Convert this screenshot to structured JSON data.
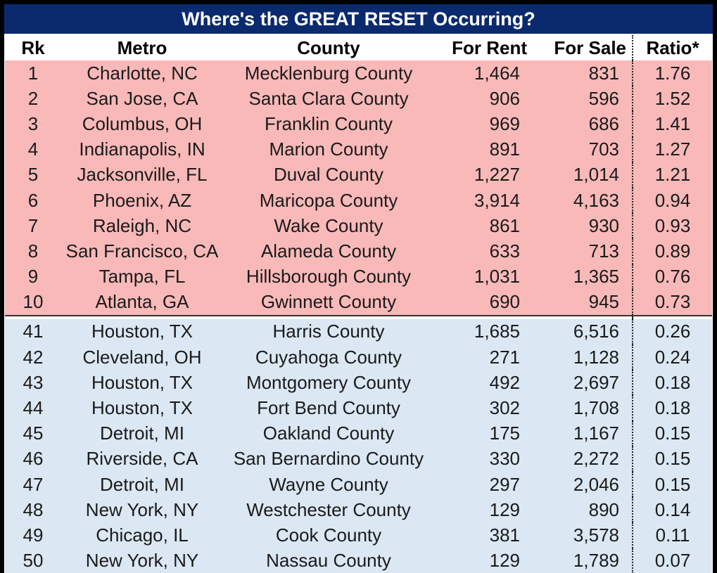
{
  "title": "Where's the GREAT RESET Occurring?",
  "colors": {
    "header_bg": "#0b2a6e",
    "top_bg": "#f9b9b9",
    "bottom_bg": "#dbe8f4"
  },
  "columns": [
    "Rk",
    "Metro",
    "County",
    "For Rent",
    "For Sale",
    "Ratio*"
  ],
  "top_rows": [
    {
      "rank": "1",
      "metro": "Charlotte, NC",
      "county": "Mecklenburg County",
      "rent": "1,464",
      "sale": "831",
      "ratio": "1.76"
    },
    {
      "rank": "2",
      "metro": "San Jose, CA",
      "county": "Santa Clara County",
      "rent": "906",
      "sale": "596",
      "ratio": "1.52"
    },
    {
      "rank": "3",
      "metro": "Columbus, OH",
      "county": "Franklin County",
      "rent": "969",
      "sale": "686",
      "ratio": "1.41"
    },
    {
      "rank": "4",
      "metro": "Indianapolis, IN",
      "county": "Marion County",
      "rent": "891",
      "sale": "703",
      "ratio": "1.27"
    },
    {
      "rank": "5",
      "metro": "Jacksonville, FL",
      "county": "Duval County",
      "rent": "1,227",
      "sale": "1,014",
      "ratio": "1.21"
    },
    {
      "rank": "6",
      "metro": "Phoenix, AZ",
      "county": "Maricopa County",
      "rent": "3,914",
      "sale": "4,163",
      "ratio": "0.94"
    },
    {
      "rank": "7",
      "metro": "Raleigh, NC",
      "county": "Wake County",
      "rent": "861",
      "sale": "930",
      "ratio": "0.93"
    },
    {
      "rank": "8",
      "metro": "San Francisco, CA",
      "county": "Alameda County",
      "rent": "633",
      "sale": "713",
      "ratio": "0.89"
    },
    {
      "rank": "9",
      "metro": "Tampa, FL",
      "county": "Hillsborough County",
      "rent": "1,031",
      "sale": "1,365",
      "ratio": "0.76"
    },
    {
      "rank": "10",
      "metro": "Atlanta, GA",
      "county": "Gwinnett County",
      "rent": "690",
      "sale": "945",
      "ratio": "0.73"
    }
  ],
  "bottom_rows": [
    {
      "rank": "41",
      "metro": "Houston, TX",
      "county": "Harris County",
      "rent": "1,685",
      "sale": "6,516",
      "ratio": "0.26"
    },
    {
      "rank": "42",
      "metro": "Cleveland, OH",
      "county": "Cuyahoga County",
      "rent": "271",
      "sale": "1,128",
      "ratio": "0.24"
    },
    {
      "rank": "43",
      "metro": "Houston, TX",
      "county": "Montgomery County",
      "rent": "492",
      "sale": "2,697",
      "ratio": "0.18"
    },
    {
      "rank": "44",
      "metro": "Houston, TX",
      "county": "Fort Bend County",
      "rent": "302",
      "sale": "1,708",
      "ratio": "0.18"
    },
    {
      "rank": "45",
      "metro": "Detroit, MI",
      "county": "Oakland County",
      "rent": "175",
      "sale": "1,167",
      "ratio": "0.15"
    },
    {
      "rank": "46",
      "metro": "Riverside, CA",
      "county": "San Bernardino County",
      "rent": "330",
      "sale": "2,272",
      "ratio": "0.15"
    },
    {
      "rank": "47",
      "metro": "Detroit, MI",
      "county": "Wayne County",
      "rent": "297",
      "sale": "2,046",
      "ratio": "0.15"
    },
    {
      "rank": "48",
      "metro": "New York, NY",
      "county": "Westchester County",
      "rent": "129",
      "sale": "890",
      "ratio": "0.14"
    },
    {
      "rank": "49",
      "metro": "Chicago, IL",
      "county": "Cook County",
      "rent": "381",
      "sale": "3,578",
      "ratio": "0.11"
    },
    {
      "rank": "50",
      "metro": "New York, NY",
      "county": "Nassau County",
      "rent": "129",
      "sale": "1,789",
      "ratio": "0.07"
    }
  ],
  "chart_data": {
    "type": "table",
    "title": "Where's the GREAT RESET Occurring?",
    "columns": [
      "Rk",
      "Metro",
      "County",
      "For Rent",
      "For Sale",
      "Ratio*"
    ],
    "rows": [
      [
        1,
        "Charlotte, NC",
        "Mecklenburg County",
        1464,
        831,
        1.76
      ],
      [
        2,
        "San Jose, CA",
        "Santa Clara County",
        906,
        596,
        1.52
      ],
      [
        3,
        "Columbus, OH",
        "Franklin County",
        969,
        686,
        1.41
      ],
      [
        4,
        "Indianapolis, IN",
        "Marion County",
        891,
        703,
        1.27
      ],
      [
        5,
        "Jacksonville, FL",
        "Duval County",
        1227,
        1014,
        1.21
      ],
      [
        6,
        "Phoenix, AZ",
        "Maricopa County",
        3914,
        4163,
        0.94
      ],
      [
        7,
        "Raleigh, NC",
        "Wake County",
        861,
        930,
        0.93
      ],
      [
        8,
        "San Francisco, CA",
        "Alameda County",
        633,
        713,
        0.89
      ],
      [
        9,
        "Tampa, FL",
        "Hillsborough County",
        1031,
        1365,
        0.76
      ],
      [
        10,
        "Atlanta, GA",
        "Gwinnett County",
        690,
        945,
        0.73
      ],
      [
        41,
        "Houston, TX",
        "Harris County",
        1685,
        6516,
        0.26
      ],
      [
        42,
        "Cleveland, OH",
        "Cuyahoga County",
        271,
        1128,
        0.24
      ],
      [
        43,
        "Houston, TX",
        "Montgomery County",
        492,
        2697,
        0.18
      ],
      [
        44,
        "Houston, TX",
        "Fort Bend County",
        302,
        1708,
        0.18
      ],
      [
        45,
        "Detroit, MI",
        "Oakland County",
        175,
        1167,
        0.15
      ],
      [
        46,
        "Riverside, CA",
        "San Bernardino County",
        330,
        2272,
        0.15
      ],
      [
        47,
        "Detroit, MI",
        "Wayne County",
        297,
        2046,
        0.15
      ],
      [
        48,
        "New York, NY",
        "Westchester County",
        129,
        890,
        0.14
      ],
      [
        49,
        "Chicago, IL",
        "Cook County",
        381,
        3578,
        0.11
      ],
      [
        50,
        "New York, NY",
        "Nassau County",
        129,
        1789,
        0.07
      ]
    ]
  }
}
